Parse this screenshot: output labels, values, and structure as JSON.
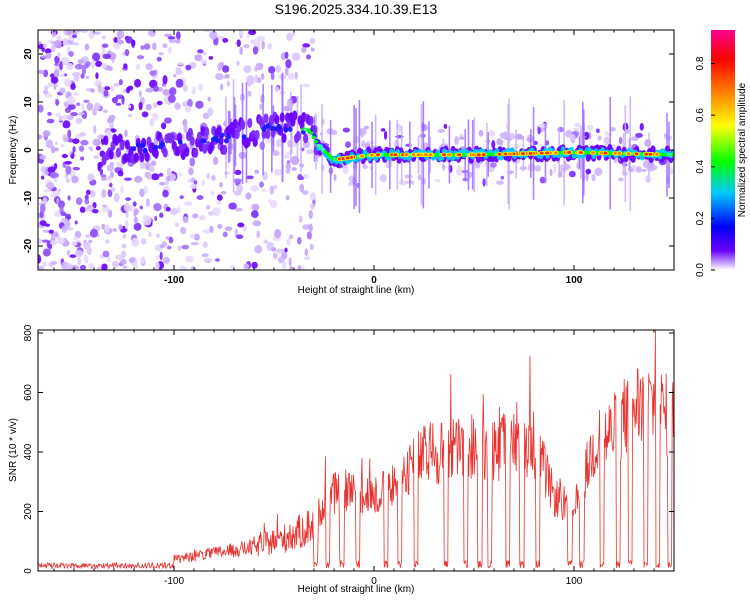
{
  "title": "S196.2025.334.10.39.E13",
  "chart_data": [
    {
      "type": "heatmap",
      "xlabel": "Height of straight line (km)",
      "ylabel": "Frequency (Hz)",
      "xlim": [
        -168,
        150
      ],
      "ylim": [
        -25,
        25
      ],
      "xticks": [
        -100,
        0,
        100
      ],
      "xtick_labels": [
        "-100",
        "0",
        "100"
      ],
      "yticks": [
        -20,
        -10,
        0,
        10,
        20
      ],
      "ytick_labels": [
        "-20",
        "-10",
        "0",
        "10",
        "20"
      ],
      "colorbar": {
        "label": "Normalized spectral amplitude",
        "range": [
          0,
          0.93
        ],
        "ticks": [
          0.0,
          0.2,
          0.4,
          0.6,
          0.8
        ],
        "tick_labels": [
          "0.0",
          "0.2",
          "0.4",
          "0.6",
          "0.8"
        ],
        "colormap": [
          "#ffffff",
          "#6a00ff",
          "#0000ff",
          "#00c8ff",
          "#00ff00",
          "#ffff00",
          "#ff8000",
          "#ff0000",
          "#ff0090"
        ]
      },
      "ridge": {
        "x": [
          -170,
          -130,
          -100,
          -80,
          -60,
          -40,
          -32,
          -28,
          -20,
          0,
          50,
          100,
          150
        ],
        "freq": [
          0,
          0,
          1,
          2,
          4,
          5,
          4,
          1,
          -2,
          -1,
          -1,
          -0.5,
          -1
        ]
      }
    },
    {
      "type": "line",
      "xlabel": "Height of straight line (km)",
      "ylabel": "SNR (10 * v/v)",
      "xlim": [
        -168,
        150
      ],
      "ylim": [
        0,
        810
      ],
      "xticks": [
        -100,
        0,
        100
      ],
      "xtick_labels": [
        "-100",
        "0",
        "100"
      ],
      "yticks": [
        0,
        200,
        400,
        600,
        800
      ],
      "ytick_labels": [
        "0",
        "200",
        "400",
        "600",
        "800"
      ],
      "color": "#e8322e",
      "envelope": {
        "x": [
          -168,
          -120,
          -100,
          -80,
          -60,
          -40,
          -30,
          -25,
          -20,
          -10,
          0,
          10,
          20,
          30,
          40,
          50,
          60,
          70,
          80,
          90,
          100,
          110,
          120,
          130,
          140,
          150
        ],
        "y": [
          20,
          25,
          40,
          60,
          80,
          120,
          160,
          230,
          260,
          280,
          250,
          290,
          370,
          400,
          410,
          420,
          400,
          440,
          430,
          250,
          200,
          420,
          470,
          560,
          560,
          500
        ]
      },
      "dropouts_x": [
        -29,
        -23,
        -16,
        -8,
        6,
        13,
        21,
        36,
        46,
        53,
        58,
        67,
        74,
        82,
        98,
        104,
        114,
        122,
        128,
        136,
        142,
        148
      ]
    }
  ]
}
